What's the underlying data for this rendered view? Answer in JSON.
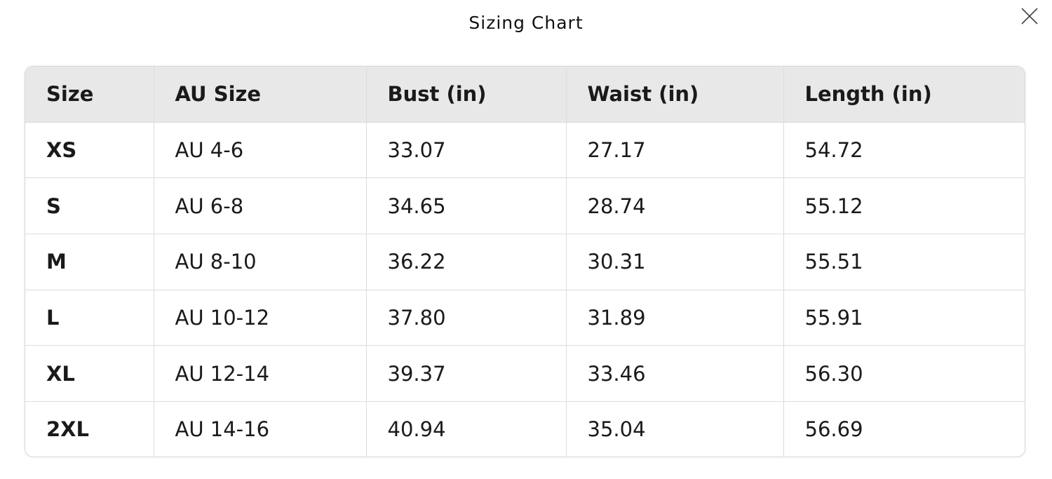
{
  "title": "Sizing Chart",
  "close_icon": "close-x-icon",
  "chart_data": {
    "type": "table",
    "columns": [
      "Size",
      "AU Size",
      "Bust (in)",
      "Waist (in)",
      "Length (in)"
    ],
    "rows": [
      [
        "XS",
        "AU 4-6",
        "33.07",
        "27.17",
        "54.72"
      ],
      [
        "S",
        "AU 6-8",
        "34.65",
        "28.74",
        "55.12"
      ],
      [
        "M",
        "AU 8-10",
        "36.22",
        "30.31",
        "55.51"
      ],
      [
        "L",
        "AU 10-12",
        "37.80",
        "31.89",
        "55.91"
      ],
      [
        "XL",
        "AU 12-14",
        "39.37",
        "33.46",
        "56.30"
      ],
      [
        "2XL",
        "AU 14-16",
        "40.94",
        "35.04",
        "56.69"
      ]
    ]
  }
}
